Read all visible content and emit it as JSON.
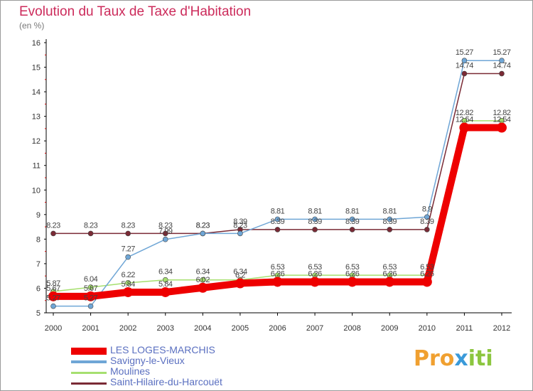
{
  "title": "Evolution du Taux de Taxe d'Habitation",
  "unit_label": "(en %)",
  "brand": {
    "part1": "Pro",
    "part2": "x",
    "part3": "iti"
  },
  "chart_data": {
    "type": "line",
    "title": "Evolution du Taux de Taxe d'Habitation",
    "ylabel": "(en %)",
    "xlabel": "",
    "x": [
      "2000",
      "2001",
      "2002",
      "2003",
      "2004",
      "2005",
      "2006",
      "2007",
      "2008",
      "2009",
      "2010",
      "2011",
      "2012"
    ],
    "ylim": [
      5,
      16
    ],
    "yticks": [
      "5",
      "6",
      "7",
      "8",
      "9",
      "10",
      "11",
      "12",
      "13",
      "14",
      "15",
      "16"
    ],
    "grid": false,
    "legend_position": "bottom-left",
    "series": [
      {
        "name": "LES LOGES-MARCHIS",
        "color": "#ee0000",
        "values": [
          5.67,
          5.67,
          5.84,
          5.84,
          6.02,
          6.2,
          6.26,
          6.26,
          6.26,
          6.26,
          6.26,
          12.54,
          12.54
        ],
        "labels": [
          "5.67",
          "5.67",
          "5.84",
          "5.84",
          "6.02",
          "6.2",
          "6.26",
          "6.26",
          "6.26",
          "6.26",
          "6.26",
          "12.54",
          "12.54"
        ]
      },
      {
        "name": "Savigny-le-Vieux",
        "color": "#6fa6d6",
        "values": [
          5.27,
          5.27,
          7.27,
          7.99,
          8.23,
          8.23,
          8.81,
          8.81,
          8.81,
          8.81,
          8.9,
          15.27,
          15.27
        ],
        "labels": [
          "5.27",
          "5.27",
          "7.27",
          "7.99",
          "8.23",
          "8.23",
          "8.81",
          "8.81",
          "8.81",
          "8.81",
          "8.9",
          "15.27",
          "15.27"
        ]
      },
      {
        "name": "Moulines",
        "color": "#a6df6f",
        "values": [
          5.87,
          6.04,
          6.22,
          6.34,
          6.34,
          6.34,
          6.53,
          6.53,
          6.53,
          6.53,
          6.53,
          12.82,
          12.82
        ],
        "labels": [
          "5.87",
          "6.04",
          "6.22",
          "6.34",
          "6.34",
          "6.34",
          "6.53",
          "6.53",
          "6.53",
          "6.53",
          "6.53",
          "12.82",
          "12.82"
        ]
      },
      {
        "name": "Saint-Hilaire-du-Harcouët",
        "color": "#7a2a35",
        "values": [
          8.23,
          8.23,
          8.23,
          8.23,
          8.23,
          8.39,
          8.39,
          8.39,
          8.39,
          8.39,
          8.39,
          14.74,
          14.74
        ],
        "labels": [
          "8.23",
          "8.23",
          "8.23",
          "8.23",
          "8.23",
          "8.39",
          "8.39",
          "8.39",
          "8.39",
          "8.39",
          "8.39",
          "14.74",
          "14.74"
        ]
      }
    ]
  }
}
